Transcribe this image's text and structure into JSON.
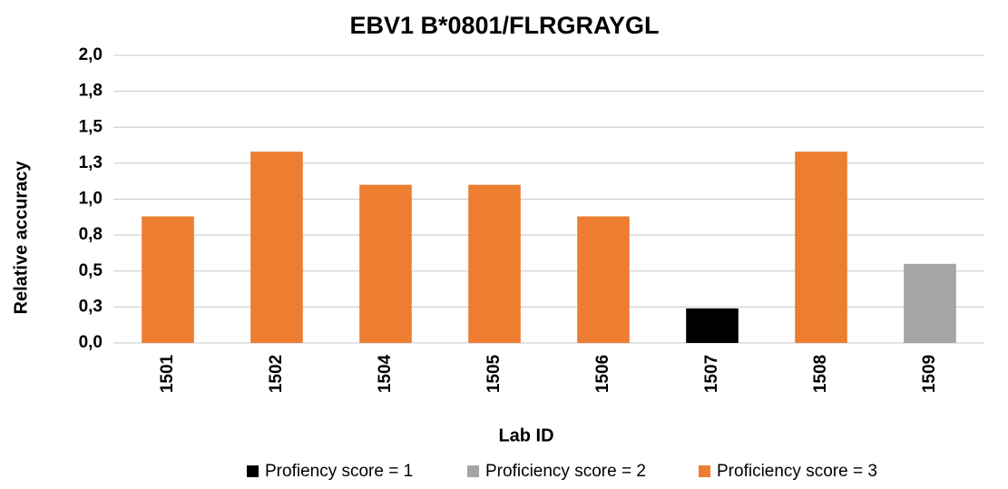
{
  "chart_data": {
    "type": "bar",
    "title": "EBV1 B*0801/FLRGRAYGL",
    "x_label": "Lab ID",
    "y_label": "Relative accuracy",
    "categories": [
      "1501",
      "1502",
      "1504",
      "1505",
      "1506",
      "1507",
      "1508",
      "1509"
    ],
    "series": [
      {
        "name": "Profiency score = 1",
        "color": "#000000",
        "values": [
          null,
          null,
          null,
          null,
          null,
          0.24,
          null,
          null
        ]
      },
      {
        "name": "Proficiency score = 2",
        "color": "#a5a5a5",
        "values": [
          null,
          null,
          null,
          null,
          null,
          null,
          null,
          0.55
        ]
      },
      {
        "name": "Proficiency score = 3",
        "color": "#ed7d31",
        "values": [
          0.88,
          1.33,
          1.1,
          1.1,
          0.88,
          null,
          1.33,
          null
        ]
      }
    ],
    "ylim": [
      0,
      2
    ],
    "yticks": [
      {
        "value": 0,
        "label": "0,0"
      },
      {
        "value": 0.25,
        "label": "0,3"
      },
      {
        "value": 0.5,
        "label": "0,5"
      },
      {
        "value": 0.75,
        "label": "0,8"
      },
      {
        "value": 1,
        "label": "1,0"
      },
      {
        "value": 1.25,
        "label": "1,3"
      },
      {
        "value": 1.5,
        "label": "1,5"
      },
      {
        "value": 1.75,
        "label": "1,8"
      },
      {
        "value": 2,
        "label": "2,0"
      }
    ],
    "grid": true,
    "legend": "bottom"
  }
}
